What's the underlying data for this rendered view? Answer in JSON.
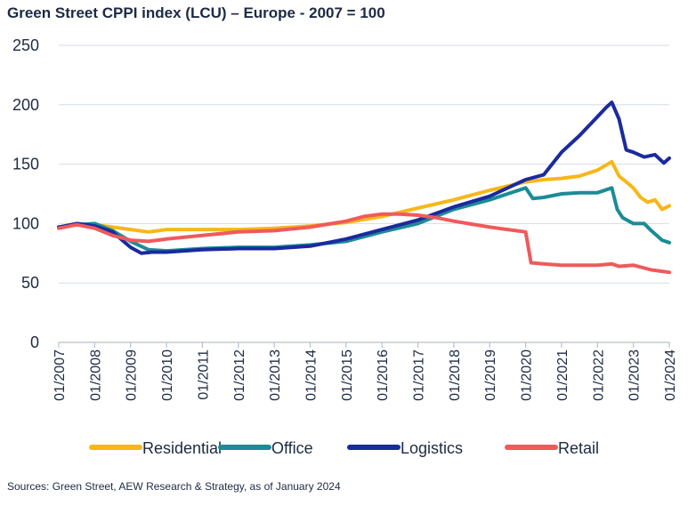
{
  "title": "Green Street CPPI index (LCU) – Europe - 2007 = 100",
  "source": "Sources: Green Street, AEW Research & Strategy, as of January 2024",
  "chart_data": {
    "type": "line",
    "title": "Green Street CPPI index (LCU) – Europe - 2007 = 100",
    "xlabel": "",
    "ylabel": "",
    "xlim": [
      2007.0,
      2024.0
    ],
    "ylim": [
      0,
      250
    ],
    "yticks": [
      "0",
      "50",
      "100",
      "150",
      "200",
      "250"
    ],
    "xticks": [
      "01/2007",
      "01/2008",
      "01/2009",
      "01/2010",
      "01/2011",
      "01/2012",
      "01/2013",
      "01/2014",
      "01/2015",
      "01/2016",
      "01/2017",
      "01/2018",
      "01/2019",
      "01/2020",
      "01/2021",
      "01/2022",
      "01/2023",
      "01/2024"
    ],
    "grid": "horizontal",
    "legend_position": "bottom",
    "series": [
      {
        "name": "Residential",
        "color": "#f7b718",
        "x": [
          2007.0,
          2007.5,
          2008.0,
          2008.5,
          2009.0,
          2009.5,
          2010.0,
          2011.0,
          2012.0,
          2013.0,
          2014.0,
          2015.0,
          2016.0,
          2017.0,
          2018.0,
          2019.0,
          2020.0,
          2020.5,
          2021.0,
          2021.5,
          2022.0,
          2022.4,
          2022.6,
          2022.8,
          2023.0,
          2023.2,
          2023.4,
          2023.6,
          2023.8,
          2024.0
        ],
        "y": [
          97,
          99,
          99,
          97,
          95,
          93,
          95,
          95,
          95,
          96,
          98,
          101,
          106,
          113,
          120,
          128,
          135,
          137,
          138,
          140,
          145,
          152,
          140,
          135,
          130,
          122,
          118,
          120,
          112,
          115
        ]
      },
      {
        "name": "Office",
        "color": "#1b8c96",
        "x": [
          2007.0,
          2007.5,
          2008.0,
          2008.5,
          2009.0,
          2009.5,
          2010.0,
          2011.0,
          2012.0,
          2013.0,
          2014.0,
          2015.0,
          2016.0,
          2017.0,
          2018.0,
          2019.0,
          2019.5,
          2020.0,
          2020.2,
          2020.5,
          2021.0,
          2021.5,
          2022.0,
          2022.4,
          2022.55,
          2022.7,
          2023.0,
          2023.3,
          2023.5,
          2023.8,
          2024.0
        ],
        "y": [
          97,
          99,
          100,
          94,
          85,
          78,
          77,
          79,
          80,
          80,
          82,
          85,
          93,
          100,
          112,
          120,
          125,
          130,
          121,
          122,
          125,
          126,
          126,
          130,
          112,
          105,
          100,
          100,
          94,
          86,
          84
        ]
      },
      {
        "name": "Logistics",
        "color": "#1b2a9e",
        "x": [
          2007.0,
          2007.5,
          2008.0,
          2008.5,
          2009.0,
          2009.3,
          2009.6,
          2010.0,
          2011.0,
          2012.0,
          2013.0,
          2014.0,
          2015.0,
          2016.0,
          2017.0,
          2018.0,
          2019.0,
          2019.5,
          2020.0,
          2020.5,
          2021.0,
          2021.5,
          2022.0,
          2022.25,
          2022.4,
          2022.6,
          2022.8,
          2023.0,
          2023.3,
          2023.6,
          2023.85,
          2024.0
        ],
        "y": [
          97,
          100,
          98,
          93,
          80,
          75,
          76,
          76,
          78,
          79,
          79,
          81,
          87,
          95,
          103,
          114,
          123,
          130,
          137,
          141,
          160,
          174,
          190,
          198,
          202,
          188,
          162,
          160,
          156,
          158,
          151,
          155
        ]
      },
      {
        "name": "Retail",
        "color": "#ef5a5c",
        "x": [
          2007.0,
          2007.5,
          2008.0,
          2008.5,
          2009.0,
          2009.5,
          2010.0,
          2011.0,
          2012.0,
          2013.0,
          2014.0,
          2015.0,
          2015.5,
          2016.0,
          2016.5,
          2017.0,
          2017.5,
          2018.0,
          2019.0,
          2019.5,
          2020.0,
          2020.15,
          2020.5,
          2021.0,
          2021.5,
          2022.0,
          2022.4,
          2022.6,
          2023.0,
          2023.5,
          2024.0
        ],
        "y": [
          96,
          99,
          96,
          90,
          86,
          85,
          87,
          90,
          93,
          94,
          97,
          102,
          106,
          108,
          108,
          107,
          105,
          102,
          97,
          95,
          93,
          67,
          66,
          65,
          65,
          65,
          66,
          64,
          65,
          61,
          59
        ]
      }
    ]
  }
}
